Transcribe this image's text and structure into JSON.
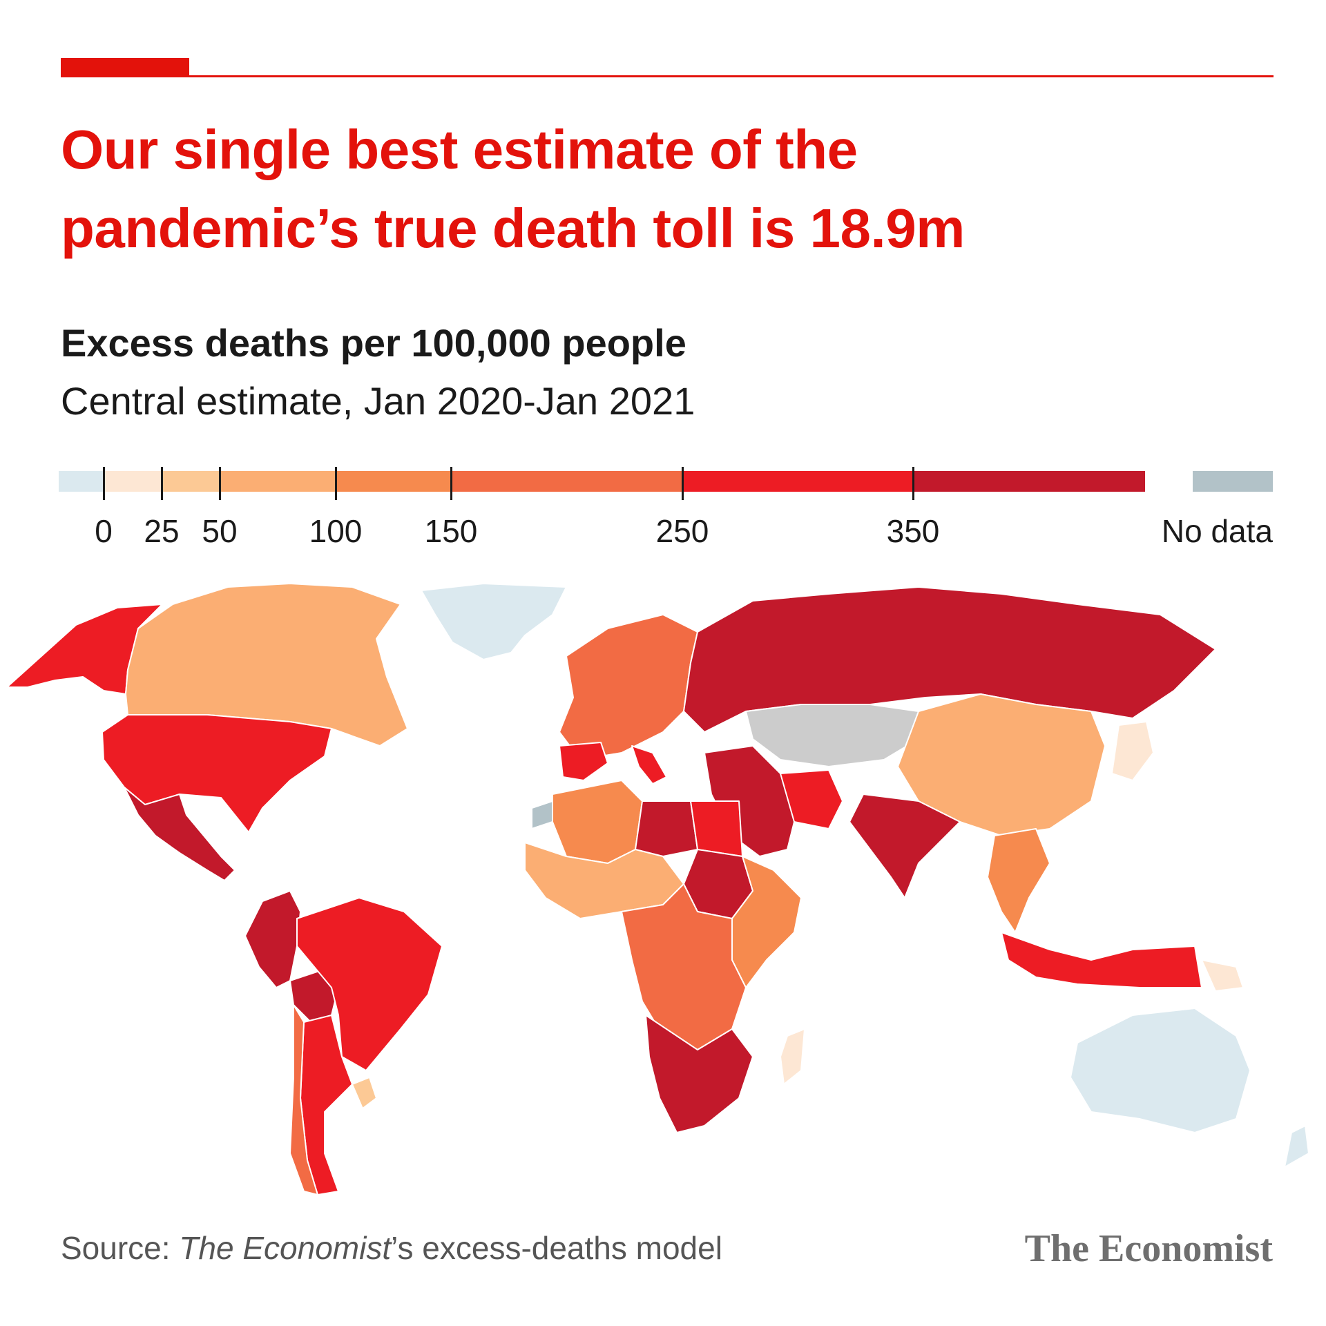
{
  "headline": {
    "line1": "Our single best estimate of the",
    "line2": "pandemic’s true death toll is 18.9m"
  },
  "subtitle": "Excess deaths per 100,000 people",
  "subsubtitle": "Central estimate, Jan 2020-Jan 2021",
  "legend": {
    "bins": [
      {
        "from": null,
        "to": 0,
        "color": "#dbe9ef"
      },
      {
        "from": 0,
        "to": 25,
        "color": "#fde7d4"
      },
      {
        "from": 25,
        "to": 50,
        "color": "#fcc995"
      },
      {
        "from": 50,
        "to": 100,
        "color": "#fbae73"
      },
      {
        "from": 100,
        "to": 150,
        "color": "#f68a4e"
      },
      {
        "from": 150,
        "to": 250,
        "color": "#f26b44"
      },
      {
        "from": 250,
        "to": 350,
        "color": "#ed1c24"
      },
      {
        "from": 350,
        "to": null,
        "color": "#c2192b"
      }
    ],
    "ticks": [
      "0",
      "25",
      "50",
      "100",
      "150",
      "250",
      "350"
    ],
    "no_data_label": "No data",
    "no_data_color": "#b2c2c8"
  },
  "map_regions": [
    {
      "region": "Alaska",
      "bin": "250-350"
    },
    {
      "region": "Canada",
      "bin": "50-100"
    },
    {
      "region": "Greenland",
      "bin": "<0"
    },
    {
      "region": "United States",
      "bin": "250-350"
    },
    {
      "region": "Mexico",
      "bin": ">350"
    },
    {
      "region": "Peru",
      "bin": ">350"
    },
    {
      "region": "Bolivia",
      "bin": ">350"
    },
    {
      "region": "Brazil",
      "bin": "250-350"
    },
    {
      "region": "Argentina",
      "bin": "250-350"
    },
    {
      "region": "Chile",
      "bin": "150-250"
    },
    {
      "region": "Uruguay",
      "bin": "25-50"
    },
    {
      "region": "Russia",
      "bin": ">350"
    },
    {
      "region": "Europe",
      "bin": "150-250"
    },
    {
      "region": "Spain",
      "bin": "250-350"
    },
    {
      "region": "Italy",
      "bin": "250-350"
    },
    {
      "region": "China",
      "bin": "50-100"
    },
    {
      "region": "Mongolia",
      "bin": "50-100"
    },
    {
      "region": "Japan",
      "bin": "0-25"
    },
    {
      "region": "India",
      "bin": ">350"
    },
    {
      "region": "Iran",
      "bin": "250-350"
    },
    {
      "region": "Middle East",
      "bin": ">350"
    },
    {
      "region": "Egypt",
      "bin": "250-350"
    },
    {
      "region": "Libya",
      "bin": ">350"
    },
    {
      "region": "Sudan",
      "bin": ">350"
    },
    {
      "region": "North Africa",
      "bin": "100-150"
    },
    {
      "region": "Western Sahara",
      "bin": "No data"
    },
    {
      "region": "West Africa",
      "bin": "50-100"
    },
    {
      "region": "Central Africa",
      "bin": "150-250"
    },
    {
      "region": "East Africa",
      "bin": "100-150"
    },
    {
      "region": "Southern Africa",
      "bin": ">350"
    },
    {
      "region": "Madagascar",
      "bin": "0-25"
    },
    {
      "region": "Southeast Asia",
      "bin": "100-150"
    },
    {
      "region": "Indonesia",
      "bin": "250-350"
    },
    {
      "region": "Papua New Guinea",
      "bin": "0-25"
    },
    {
      "region": "Australia",
      "bin": "<0"
    },
    {
      "region": "New Zealand",
      "bin": "<0"
    }
  ],
  "source": {
    "prefix": "Source: ",
    "italic": "The Economist",
    "suffix": "’s excess-deaths model"
  },
  "brand": "The Economist"
}
